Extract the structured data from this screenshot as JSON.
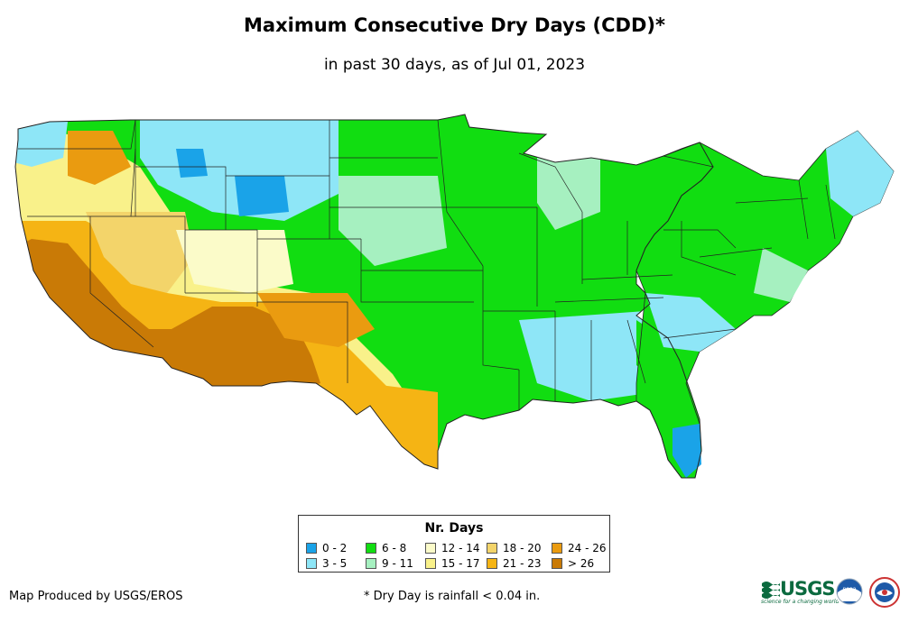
{
  "title": "Maximum Consecutive Dry Days (CDD)*",
  "subtitle": "in past 30 days, as of Jul 01, 2023",
  "legend": {
    "title": "Nr. Days",
    "items": [
      {
        "label": "0 - 2",
        "color": "#1aa3e8"
      },
      {
        "label": "3 - 5",
        "color": "#8ee6f7"
      },
      {
        "label": "6 - 8",
        "color": "#11dd11"
      },
      {
        "label": "9 - 11",
        "color": "#a6f0c0"
      },
      {
        "label": "12 - 14",
        "color": "#fbfbc9"
      },
      {
        "label": "15 - 17",
        "color": "#f9f18a"
      },
      {
        "label": "18 - 20",
        "color": "#f3d46a"
      },
      {
        "label": "21 - 23",
        "color": "#f5b414"
      },
      {
        "label": "24 - 26",
        "color": "#ea9b10"
      },
      {
        "label": "> 26",
        "color": "#c97a06"
      }
    ]
  },
  "footer": {
    "credit": "Map Produced by USGS/EROS",
    "note": "* Dry Day is rainfall < 0.04 in.",
    "usgs": "USGS",
    "usgs_tagline": "science for a changing world",
    "noaa": "noaa"
  },
  "map": {
    "regions": {
      "pacific_northwest_coast": "#8ee6f7",
      "oregon_interior": "#f5b414",
      "california": "#c97a06",
      "nevada": "#f3d46a",
      "arizona": "#c97a06",
      "new_mexico": "#ea9b10",
      "texas_south": "#f5b414",
      "northern_rockies": "#8ee6f7",
      "wyoming_core": "#1aa3e8",
      "plains": "#11dd11",
      "midwest": "#a6f0c0",
      "southeast": "#8ee6f7",
      "northeast": "#11dd11",
      "florida_south": "#1aa3e8",
      "utah_colorado": "#fbfbc9"
    }
  }
}
